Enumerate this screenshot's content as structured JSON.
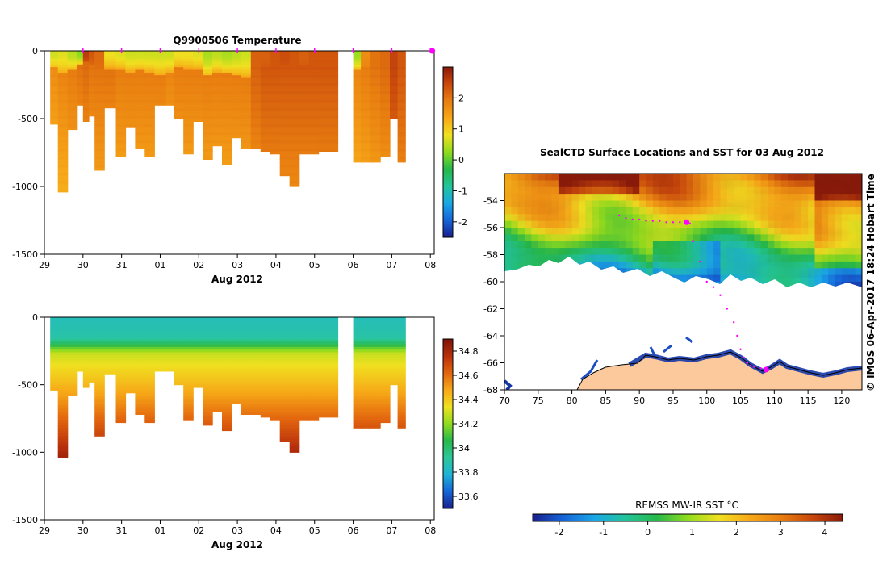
{
  "colors": {
    "temp_ramp": [
      "#1a1f8c",
      "#1565d8",
      "#1aa7e6",
      "#22c49a",
      "#26b84a",
      "#8fdc1e",
      "#f0e020",
      "#f7a818",
      "#e87e10",
      "#c9480c",
      "#8a1a0a"
    ],
    "sal_ramp": [
      "#1a1f8c",
      "#1565d8",
      "#1fb3d6",
      "#2bc79a",
      "#27b84c",
      "#8fdc1e",
      "#f0e020",
      "#f7a818",
      "#e2650e",
      "#b8300c",
      "#7d1208"
    ],
    "land": "#fbc99c",
    "marker": "#ff00ff"
  },
  "chart_data": [
    {
      "type": "heatmap",
      "id": "temperature-section",
      "title": "Q9900506  Temperature",
      "xlabel": "Aug 2012",
      "x_ticks": [
        "29",
        "30",
        "31",
        "01",
        "02",
        "03",
        "04",
        "05",
        "06",
        "07",
        "08"
      ],
      "x_range": [
        29,
        39.1
      ],
      "ylim": [
        -1500,
        0
      ],
      "y_ticks": [
        "0",
        "-500",
        "-1000",
        "-1500"
      ],
      "colorbar": {
        "min": -2.5,
        "max": 3.0,
        "ticks": [
          "2",
          "1",
          "0",
          "-1",
          "-2"
        ]
      },
      "surface_markers_day": [
        30,
        31,
        32,
        33,
        34,
        35,
        36,
        37,
        38,
        39,
        39.05
      ],
      "profiles": [
        {
          "d": 29.15,
          "max": 530,
          "surf": 0.6,
          "mix": 120,
          "deep": 1.7
        },
        {
          "d": 29.35,
          "max": 1030,
          "surf": 0.7,
          "mix": 160,
          "deep": 1.8
        },
        {
          "d": 29.6,
          "max": 580,
          "surf": 0.5,
          "mix": 140,
          "deep": 1.9
        },
        {
          "d": 29.85,
          "max": 400,
          "surf": 0.2,
          "mix": 100,
          "deep": 2.0
        },
        {
          "d": 30.0,
          "max": 510,
          "surf": 2.6,
          "mix": 80,
          "deep": 2.1
        },
        {
          "d": 30.15,
          "max": 480,
          "surf": 2.3,
          "mix": 90,
          "deep": 2.0
        },
        {
          "d": 30.3,
          "max": 870,
          "surf": 2.1,
          "mix": 110,
          "deep": 2.0
        },
        {
          "d": 30.55,
          "max": 420,
          "surf": 0.8,
          "mix": 130,
          "deep": 2.0
        },
        {
          "d": 30.85,
          "max": 780,
          "surf": 0.7,
          "mix": 130,
          "deep": 1.9
        },
        {
          "d": 31.1,
          "max": 560,
          "surf": 0.6,
          "mix": 150,
          "deep": 1.9
        },
        {
          "d": 31.35,
          "max": 720,
          "surf": 0.6,
          "mix": 140,
          "deep": 1.9
        },
        {
          "d": 31.6,
          "max": 780,
          "surf": 0.6,
          "mix": 150,
          "deep": 1.9
        },
        {
          "d": 31.85,
          "max": 400,
          "surf": 0.6,
          "mix": 170,
          "deep": 1.9
        },
        {
          "d": 32.15,
          "max": 400,
          "surf": 0.6,
          "mix": 150,
          "deep": 1.8
        },
        {
          "d": 32.35,
          "max": 490,
          "surf": 0.8,
          "mix": 120,
          "deep": 1.9
        },
        {
          "d": 32.6,
          "max": 750,
          "surf": 0.8,
          "mix": 130,
          "deep": 1.9
        },
        {
          "d": 32.85,
          "max": 520,
          "surf": 0.7,
          "mix": 130,
          "deep": 1.9
        },
        {
          "d": 33.1,
          "max": 790,
          "surf": 0.4,
          "mix": 180,
          "deep": 1.9
        },
        {
          "d": 33.35,
          "max": 690,
          "surf": 0.5,
          "mix": 150,
          "deep": 1.9
        },
        {
          "d": 33.6,
          "max": 840,
          "surf": 0.4,
          "mix": 160,
          "deep": 1.9
        },
        {
          "d": 33.85,
          "max": 640,
          "surf": 0.5,
          "mix": 170,
          "deep": 1.9
        },
        {
          "d": 34.1,
          "max": 720,
          "surf": 0.6,
          "mix": 190,
          "deep": 1.9
        },
        {
          "d": 34.35,
          "max": 720,
          "surf": 2.2,
          "mix": 90,
          "deep": 2.2
        },
        {
          "d": 34.6,
          "max": 740,
          "surf": 2.2,
          "mix": 110,
          "deep": 2.3
        },
        {
          "d": 34.85,
          "max": 760,
          "surf": 2.3,
          "mix": 110,
          "deep": 2.3
        },
        {
          "d": 35.1,
          "max": 910,
          "surf": 2.4,
          "mix": 100,
          "deep": 2.3
        },
        {
          "d": 35.35,
          "max": 1000,
          "surf": 2.3,
          "mix": 100,
          "deep": 2.3
        },
        {
          "d": 35.6,
          "max": 760,
          "surf": 2.2,
          "mix": 100,
          "deep": 2.3
        },
        {
          "d": 35.85,
          "max": 760,
          "surf": 2.3,
          "mix": 100,
          "deep": 2.3
        },
        {
          "d": 36.1,
          "max": 740,
          "surf": 2.3,
          "mix": 110,
          "deep": 2.3
        },
        {
          "d": 36.35,
          "max": 740,
          "surf": 2.3,
          "mix": 110,
          "deep": 2.3
        },
        {
          "d": 37.0,
          "max": 820,
          "surf": 0.3,
          "mix": 130,
          "deep": 1.8
        },
        {
          "d": 37.2,
          "max": 820,
          "surf": 1.7,
          "mix": 110,
          "deep": 1.9
        },
        {
          "d": 37.45,
          "max": 820,
          "surf": 2.0,
          "mix": 100,
          "deep": 2.0
        },
        {
          "d": 37.7,
          "max": 780,
          "surf": 2.1,
          "mix": 100,
          "deep": 2.1
        },
        {
          "d": 37.95,
          "max": 500,
          "surf": 2.5,
          "mix": 100,
          "deep": 2.5
        },
        {
          "d": 38.15,
          "max": 820,
          "surf": 2.3,
          "mix": 100,
          "deep": 2.3
        }
      ]
    },
    {
      "type": "heatmap",
      "id": "salinity-section",
      "title": "",
      "xlabel": "Aug 2012",
      "x_ticks": [
        "29",
        "30",
        "31",
        "01",
        "02",
        "03",
        "04",
        "05",
        "06",
        "07",
        "08"
      ],
      "x_range": [
        29,
        39.1
      ],
      "ylim": [
        -1500,
        0
      ],
      "y_ticks": [
        "0",
        "-500",
        "-1000",
        "-1500"
      ],
      "colorbar": {
        "min": 33.5,
        "max": 34.9,
        "ticks": [
          "34.8",
          "34.6",
          "34.4",
          "34.2",
          "34",
          "33.8",
          "33.6"
        ]
      }
    },
    {
      "type": "heatmap",
      "id": "sst-map",
      "title": "SealCTD Surface Locations and SST for 03 Aug 2012",
      "xlabel": "",
      "xlim": [
        70,
        123
      ],
      "ylim": [
        -68,
        -52
      ],
      "x_ticks": [
        "70",
        "75",
        "80",
        "85",
        "90",
        "95",
        "100",
        "105",
        "110",
        "115",
        "120"
      ],
      "y_ticks": [
        "-54",
        "-56",
        "-58",
        "-60",
        "-62",
        "-64",
        "-66",
        "-68"
      ],
      "colorbar": {
        "label": "REMSS MW-IR SST °C",
        "min": -2.6,
        "max": 4.4,
        "ticks": [
          "-2",
          "-1",
          "0",
          "1",
          "2",
          "3",
          "4"
        ]
      },
      "track": [
        [
          87,
          -55.1
        ],
        [
          88,
          -55.3
        ],
        [
          89,
          -55.4
        ],
        [
          90,
          -55.4
        ],
        [
          91,
          -55.5
        ],
        [
          92,
          -55.5
        ],
        [
          93,
          -55.5
        ],
        [
          94,
          -55.6
        ],
        [
          95,
          -55.6
        ],
        [
          96,
          -55.6
        ],
        [
          97,
          -55.6
        ],
        [
          97.5,
          -55.7
        ],
        [
          98,
          -57
        ],
        [
          99,
          -58.5
        ],
        [
          100,
          -60
        ],
        [
          101,
          -60.4
        ],
        [
          102,
          -61
        ],
        [
          103,
          -62
        ],
        [
          104,
          -63
        ],
        [
          104.5,
          -64
        ],
        [
          105,
          -65
        ],
        [
          105.5,
          -65.6
        ],
        [
          106,
          -66
        ],
        [
          106.5,
          -66.2
        ],
        [
          107,
          -66.3
        ],
        [
          108,
          -66.4
        ],
        [
          109,
          -66.5
        ]
      ],
      "highlight": [
        [
          97,
          -55.6
        ],
        [
          108.8,
          -66.5
        ]
      ]
    }
  ],
  "footer_stamp": "© IMOS 06-Apr-2017 18:24 Hobart Time"
}
